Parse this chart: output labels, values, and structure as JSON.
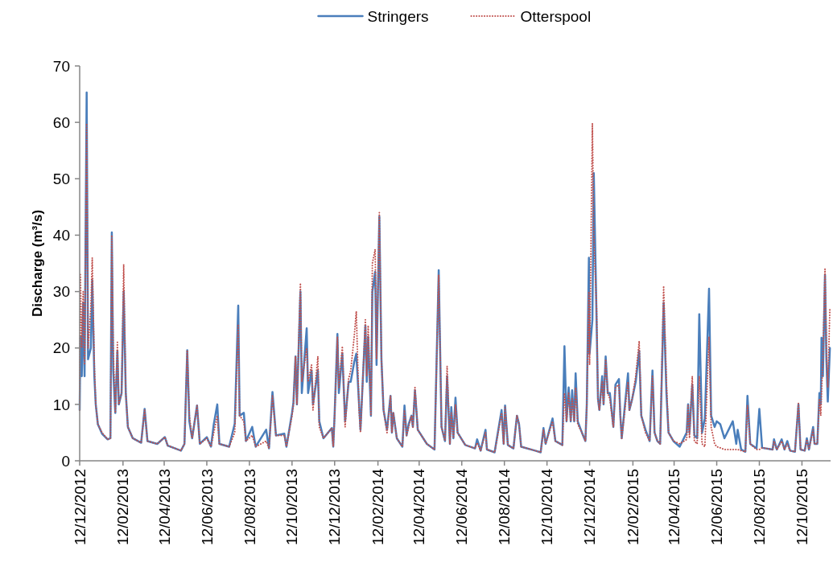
{
  "chart_data": {
    "type": "line",
    "ylabel": "Discharge (m³/s)",
    "legend": "top",
    "ylim": [
      0,
      70
    ],
    "yticks": [
      0,
      10,
      20,
      30,
      40,
      50,
      60,
      70
    ],
    "xlim": [
      "2012-12-12",
      "2015-11-22"
    ],
    "xticks": [
      {
        "value": "2012-12-12",
        "label": "12/12/2012"
      },
      {
        "value": "2013-02-12",
        "label": "12/02/2013"
      },
      {
        "value": "2013-04-12",
        "label": "12/04/2013"
      },
      {
        "value": "2013-06-12",
        "label": "12/06/2013"
      },
      {
        "value": "2013-08-12",
        "label": "12/08/2013"
      },
      {
        "value": "2013-10-12",
        "label": "12/10/2013"
      },
      {
        "value": "2013-12-12",
        "label": "12/12/2013"
      },
      {
        "value": "2014-02-12",
        "label": "12/02/2014"
      },
      {
        "value": "2014-04-12",
        "label": "12/04/2014"
      },
      {
        "value": "2014-06-12",
        "label": "12/06/2014"
      },
      {
        "value": "2014-08-12",
        "label": "12/08/2014"
      },
      {
        "value": "2014-10-12",
        "label": "12/10/2014"
      },
      {
        "value": "2014-12-12",
        "label": "12/12/2014"
      },
      {
        "value": "2015-02-12",
        "label": "12/02/2015"
      },
      {
        "value": "2015-04-12",
        "label": "12/04/2015"
      },
      {
        "value": "2015-06-12",
        "label": "12/06/2015"
      },
      {
        "value": "2015-08-12",
        "label": "12/08/2015"
      },
      {
        "value": "2015-10-12",
        "label": "12/10/2015"
      }
    ],
    "x": [
      "2012-12-12",
      "2012-12-13",
      "2012-12-15",
      "2012-12-17",
      "2012-12-19",
      "2012-12-22",
      "2012-12-24",
      "2012-12-28",
      "2012-12-30",
      "2013-01-02",
      "2013-01-04",
      "2013-01-07",
      "2013-01-13",
      "2013-01-21",
      "2013-01-25",
      "2013-01-27",
      "2013-01-29",
      "2013-02-01",
      "2013-02-04",
      "2013-02-06",
      "2013-02-10",
      "2013-02-13",
      "2013-02-16",
      "2013-02-19",
      "2013-02-26",
      "2013-03-10",
      "2013-03-15",
      "2013-03-19",
      "2013-04-02",
      "2013-04-13",
      "2013-04-17",
      "2013-05-06",
      "2013-05-11",
      "2013-05-15",
      "2013-05-18",
      "2013-05-22",
      "2013-05-29",
      "2013-06-02",
      "2013-06-12",
      "2013-06-18",
      "2013-06-22",
      "2013-06-27",
      "2013-06-30",
      "2013-07-14",
      "2013-07-22",
      "2013-07-27",
      "2013-07-29",
      "2013-08-04",
      "2013-08-07",
      "2013-08-16",
      "2013-08-21",
      "2013-09-05",
      "2013-09-09",
      "2013-09-14",
      "2013-09-19",
      "2013-10-01",
      "2013-10-04",
      "2013-10-12",
      "2013-10-14",
      "2013-10-17",
      "2013-10-19",
      "2013-10-24",
      "2013-10-26",
      "2013-11-02",
      "2013-11-04",
      "2013-11-09",
      "2013-11-11",
      "2013-11-18",
      "2013-11-20",
      "2013-11-26",
      "2013-12-08",
      "2013-12-10",
      "2013-12-12",
      "2013-12-16",
      "2013-12-18",
      "2013-12-23",
      "2013-12-27",
      "2014-01-01",
      "2014-01-04",
      "2014-01-09",
      "2014-01-12",
      "2014-01-16",
      "2014-01-18",
      "2014-01-25",
      "2014-01-27",
      "2014-01-29",
      "2014-02-02",
      "2014-02-04",
      "2014-02-08",
      "2014-02-10",
      "2014-02-14",
      "2014-02-17",
      "2014-02-20",
      "2014-02-25",
      "2014-03-02",
      "2014-03-04",
      "2014-03-06",
      "2014-03-11",
      "2014-03-19",
      "2014-03-22",
      "2014-03-25",
      "2014-03-28",
      "2014-04-01",
      "2014-04-03",
      "2014-04-06",
      "2014-04-10",
      "2014-04-23",
      "2014-05-04",
      "2014-05-10",
      "2014-05-14",
      "2014-05-19",
      "2014-05-22",
      "2014-05-26",
      "2014-05-28",
      "2014-05-31",
      "2014-06-03",
      "2014-06-06",
      "2014-06-17",
      "2014-07-01",
      "2014-07-04",
      "2014-07-09",
      "2014-07-16",
      "2014-07-18",
      "2014-07-29",
      "2014-08-08",
      "2014-08-11",
      "2014-08-13",
      "2014-08-17",
      "2014-08-25",
      "2014-08-30",
      "2014-09-02",
      "2014-09-05",
      "2014-09-25",
      "2014-10-03",
      "2014-10-07",
      "2014-10-10",
      "2014-10-20",
      "2014-10-24",
      "2014-11-03",
      "2014-11-06",
      "2014-11-09",
      "2014-11-12",
      "2014-11-15",
      "2014-11-17",
      "2014-11-20",
      "2014-11-22",
      "2014-11-25",
      "2014-12-01",
      "2014-12-06",
      "2014-12-08",
      "2014-12-11",
      "2014-12-12",
      "2014-12-16",
      "2014-12-18",
      "2014-12-22",
      "2014-12-24",
      "2014-12-26",
      "2014-12-30",
      "2015-01-01",
      "2015-01-04",
      "2015-01-07",
      "2015-01-10",
      "2015-01-15",
      "2015-01-18",
      "2015-01-23",
      "2015-01-25",
      "2015-01-27",
      "2015-02-05",
      "2015-02-07",
      "2015-02-11",
      "2015-02-16",
      "2015-02-21",
      "2015-02-24",
      "2015-03-02",
      "2015-03-08",
      "2015-03-12",
      "2015-03-15",
      "2015-03-19",
      "2015-03-23",
      "2015-03-28",
      "2015-04-01",
      "2015-04-04",
      "2015-04-11",
      "2015-04-20",
      "2015-04-30",
      "2015-05-02",
      "2015-05-04",
      "2015-05-08",
      "2015-05-11",
      "2015-05-15",
      "2015-05-18",
      "2015-05-22",
      "2015-05-26",
      "2015-06-01",
      "2015-06-04",
      "2015-06-09",
      "2015-06-12",
      "2015-06-17",
      "2015-06-23",
      "2015-07-05",
      "2015-07-10",
      "2015-07-12",
      "2015-07-17",
      "2015-07-23",
      "2015-07-26",
      "2015-07-30",
      "2015-08-08",
      "2015-08-12",
      "2015-08-16",
      "2015-08-31",
      "2015-09-02",
      "2015-09-06",
      "2015-09-13",
      "2015-09-17",
      "2015-09-21",
      "2015-09-25",
      "2015-10-02",
      "2015-10-07",
      "2015-10-10",
      "2015-10-16",
      "2015-10-19",
      "2015-10-22",
      "2015-10-28",
      "2015-10-30",
      "2015-11-03",
      "2015-11-06",
      "2015-11-08",
      "2015-11-09",
      "2015-11-11",
      "2015-11-14",
      "2015-11-16",
      "2015-11-18",
      "2015-11-21"
    ],
    "series": [
      {
        "name": "Stringers",
        "color": "#4a7ebb",
        "line_style": "solid",
        "values": [
          9,
          22,
          15,
          28,
          15,
          65.3,
          18,
          20,
          32,
          15,
          10,
          6.5,
          4.8,
          3.8,
          4,
          40.5,
          16,
          8.5,
          19.5,
          10,
          12,
          30,
          12,
          6,
          4,
          3.2,
          9.2,
          3.5,
          3,
          4.2,
          2.7,
          1.8,
          3,
          19.6,
          7,
          4,
          9.8,
          3,
          4.2,
          2.5,
          6.5,
          10,
          3,
          2.5,
          6.6,
          27.5,
          8,
          8.5,
          3.5,
          6,
          2.5,
          5.5,
          2.2,
          12.2,
          4.5,
          4.8,
          2.5,
          8.5,
          10.3,
          18.5,
          10,
          30,
          12,
          23.5,
          12,
          16,
          10,
          16,
          7,
          4,
          5.8,
          2.5,
          8.3,
          22.5,
          12,
          19,
          7,
          14,
          14,
          17.5,
          19,
          10,
          5.5,
          24,
          14,
          22,
          8,
          30,
          33.5,
          17,
          43.3,
          18,
          9,
          5.5,
          11.5,
          5,
          8.5,
          4,
          2.5,
          9.8,
          4.5,
          6.5,
          8,
          6,
          12.5,
          5.5,
          3,
          2,
          33.8,
          6,
          3.5,
          15,
          3,
          9.5,
          4,
          11.2,
          5,
          2.8,
          2.2,
          3.8,
          1.8,
          5.5,
          2,
          1.5,
          9,
          3,
          9.8,
          2.8,
          2.2,
          8,
          6.5,
          2.5,
          1.8,
          1.5,
          5.8,
          3,
          7.5,
          3.5,
          2.8,
          20.3,
          7,
          13,
          7,
          12.5,
          7,
          15.5,
          7,
          5,
          3.5,
          10,
          36,
          19,
          25,
          51,
          25,
          11,
          9,
          15,
          10,
          18.5,
          12,
          12,
          6,
          13.5,
          14.5,
          8,
          4,
          15.5,
          9,
          11,
          14,
          19.5,
          8,
          5.5,
          3.5,
          16,
          5,
          3.5,
          3,
          28,
          12,
          5,
          3.5,
          2.5,
          5,
          10,
          5,
          13.5,
          4.5,
          4,
          26,
          5,
          7.5,
          30.5,
          8,
          6,
          7,
          6.5,
          4,
          7,
          3,
          5.5,
          2,
          1.6,
          11.5,
          3,
          2.2,
          9.2,
          2.3,
          2,
          3.8,
          2,
          3.8,
          2,
          3.5,
          1.8,
          1.6,
          10,
          2,
          1.8,
          4,
          2,
          6,
          3,
          3,
          12,
          10,
          21.8,
          15,
          33,
          18,
          10.5,
          20
        ]
      },
      {
        "name": "Otterspool",
        "color": "#c0504d",
        "line_style": "dotted",
        "values": [
          9,
          33,
          20,
          30,
          17,
          59.8,
          20,
          27,
          36,
          17,
          10,
          6.5,
          5,
          3.8,
          4,
          40,
          20,
          8.5,
          21,
          10,
          12,
          34.8,
          12,
          6,
          4,
          3.2,
          9,
          3.5,
          3,
          4.2,
          2.7,
          1.8,
          3,
          19.6,
          8,
          4,
          9.8,
          3,
          4,
          2.5,
          5,
          8,
          3,
          2.5,
          5,
          24,
          8,
          7,
          3.5,
          4.5,
          2.5,
          3.5,
          2.2,
          11.5,
          4.5,
          4.5,
          2.5,
          8,
          10,
          18.5,
          10,
          31.5,
          14,
          20,
          14,
          17,
          9,
          18.5,
          6,
          4,
          5.8,
          2.5,
          8,
          22,
          13,
          20.3,
          6,
          14.5,
          16,
          22,
          26.5,
          9,
          5,
          25,
          15,
          24,
          8,
          35,
          37.5,
          18,
          44,
          18,
          9,
          5,
          11.5,
          5,
          8.5,
          4,
          2.5,
          9,
          4.5,
          6,
          8,
          6,
          13,
          5.5,
          3,
          2,
          33,
          6,
          3.5,
          16.8,
          3,
          8.5,
          4,
          10,
          5,
          2.8,
          2.2,
          3.2,
          1.8,
          5,
          2,
          1.5,
          8.5,
          3,
          9.5,
          2.8,
          2.2,
          8,
          6.5,
          2.5,
          1.8,
          1.5,
          5.5,
          3,
          7,
          3.5,
          2.8,
          12,
          7,
          12,
          7,
          11,
          7,
          13,
          6.5,
          5,
          3.5,
          10,
          30,
          17,
          59.8,
          40,
          27,
          11,
          9,
          14,
          10,
          18,
          12,
          11,
          6,
          13,
          13.5,
          8,
          4,
          14,
          9,
          11,
          15,
          21.2,
          8,
          5,
          3.5,
          15,
          5,
          3.5,
          3,
          31,
          14,
          5,
          3.5,
          3,
          3.8,
          9.8,
          4,
          15,
          3.5,
          3,
          15,
          3,
          2.5,
          22,
          6,
          3,
          2.5,
          2.3,
          2,
          2,
          2,
          2,
          1.8,
          1.6,
          9.8,
          3,
          2,
          2,
          2.3,
          2,
          3.5,
          2,
          3.5,
          2,
          3,
          1.8,
          1.6,
          10.2,
          2,
          1.8,
          3.8,
          2,
          5.5,
          3,
          3,
          11,
          8,
          12,
          18,
          34,
          20,
          13,
          27
        ]
      }
    ]
  }
}
